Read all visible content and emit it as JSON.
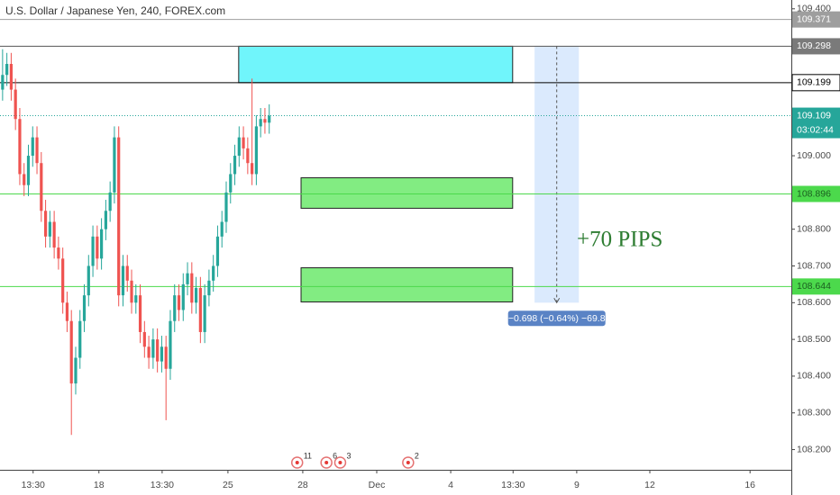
{
  "chart_data": {
    "type": "candlestick",
    "title": "U.S. Dollar / Japanese Yen, 240, FOREX.com",
    "up_color": "#26a69a",
    "down_color": "#ef5350",
    "open": [
      109.18,
      109.22,
      109.25,
      109.18,
      109.1,
      108.95,
      108.92,
      109.0,
      109.05,
      108.98,
      108.85,
      108.78,
      108.82,
      108.75,
      108.72,
      108.6,
      108.55,
      108.38,
      108.45,
      108.55,
      108.62,
      108.7,
      108.78,
      108.72,
      108.8,
      108.85,
      108.9,
      109.05,
      108.62,
      108.7,
      108.66,
      108.6,
      108.62,
      108.52,
      108.48,
      108.45,
      108.5,
      108.44,
      108.48,
      108.42,
      108.55,
      108.62,
      108.58,
      108.65,
      108.68,
      108.6,
      108.64,
      108.52,
      108.62,
      108.66,
      108.7,
      108.78,
      108.82,
      108.9,
      108.95,
      109.0,
      109.05,
      109.02,
      108.98,
      108.95,
      109.08,
      109.1,
      109.09
    ],
    "high": [
      109.29,
      109.28,
      109.28,
      109.21,
      109.13,
      108.98,
      109.03,
      109.08,
      109.08,
      109.01,
      108.88,
      108.85,
      108.85,
      108.78,
      108.75,
      108.63,
      108.58,
      108.48,
      108.58,
      108.65,
      108.73,
      108.81,
      108.81,
      108.83,
      108.88,
      108.93,
      109.08,
      109.08,
      108.73,
      108.73,
      108.69,
      108.65,
      108.65,
      108.55,
      108.51,
      108.53,
      108.53,
      108.51,
      108.51,
      108.58,
      108.65,
      108.65,
      108.68,
      108.71,
      108.71,
      108.67,
      108.67,
      108.65,
      108.69,
      108.73,
      108.81,
      108.85,
      108.93,
      108.98,
      109.03,
      109.08,
      109.08,
      109.05,
      109.21,
      109.11,
      109.13,
      109.13,
      109.14
    ],
    "low": [
      109.15,
      109.19,
      109.15,
      109.07,
      108.92,
      108.89,
      108.89,
      108.97,
      108.95,
      108.82,
      108.75,
      108.75,
      108.72,
      108.69,
      108.57,
      108.52,
      108.24,
      108.35,
      108.42,
      108.52,
      108.59,
      108.67,
      108.69,
      108.69,
      108.77,
      108.82,
      108.87,
      108.59,
      108.59,
      108.63,
      108.57,
      108.57,
      108.49,
      108.45,
      108.42,
      108.42,
      108.41,
      108.41,
      108.28,
      108.39,
      108.52,
      108.55,
      108.55,
      108.62,
      108.57,
      108.57,
      108.49,
      108.49,
      108.59,
      108.63,
      108.67,
      108.75,
      108.79,
      108.87,
      108.92,
      108.97,
      108.99,
      108.95,
      108.92,
      108.92,
      109.05,
      109.06,
      109.06
    ],
    "close": [
      109.22,
      109.25,
      109.18,
      109.1,
      108.95,
      108.92,
      109.0,
      109.05,
      108.98,
      108.85,
      108.78,
      108.82,
      108.75,
      108.72,
      108.6,
      108.55,
      108.38,
      108.45,
      108.55,
      108.62,
      108.7,
      108.78,
      108.72,
      108.8,
      108.85,
      108.9,
      109.05,
      108.62,
      108.7,
      108.66,
      108.6,
      108.62,
      108.52,
      108.48,
      108.45,
      108.5,
      108.44,
      108.48,
      108.42,
      108.55,
      108.62,
      108.58,
      108.65,
      108.68,
      108.6,
      108.64,
      108.52,
      108.62,
      108.66,
      108.7,
      108.78,
      108.82,
      108.9,
      108.95,
      109.0,
      109.05,
      109.02,
      108.98,
      108.95,
      109.08,
      109.1,
      109.09,
      109.109
    ],
    "ylim": [
      108.145,
      109.424
    ],
    "yticks": [
      {
        "value": 109.4,
        "label": "109.400"
      },
      {
        "value": 109.0,
        "label": "109.000"
      },
      {
        "value": 108.8,
        "label": "108.800"
      },
      {
        "value": 108.7,
        "label": "108.700"
      },
      {
        "value": 108.6,
        "label": "108.600"
      },
      {
        "value": 108.5,
        "label": "108.500"
      },
      {
        "value": 108.4,
        "label": "108.400"
      },
      {
        "value": 108.3,
        "label": "108.300"
      },
      {
        "value": 108.2,
        "label": "108.200"
      }
    ],
    "xlim": [
      -0.6,
      183.4
    ],
    "xticks": [
      {
        "value": 7.1,
        "label": "13:30"
      },
      {
        "value": 22.4,
        "label": "18"
      },
      {
        "value": 37.1,
        "label": "13:30"
      },
      {
        "value": 52.4,
        "label": "25"
      },
      {
        "value": 69.8,
        "label": "28"
      },
      {
        "value": 87,
        "label": "Dec"
      },
      {
        "value": 104.2,
        "label": "4"
      },
      {
        "value": 118.7,
        "label": "13:30"
      },
      {
        "value": 133.5,
        "label": "9"
      },
      {
        "value": 150.5,
        "label": "12"
      },
      {
        "value": 173.8,
        "label": "16"
      }
    ],
    "price_lines": [
      {
        "value": 109.371,
        "color": "#9e9e9e",
        "label_bg": "#9e9e9e",
        "label_fg": "#ffffff"
      },
      {
        "value": 109.298,
        "color": "#555555",
        "label_bg": "#7a7a7a",
        "label_fg": "#ffffff"
      },
      {
        "value": 109.199,
        "color": "#000000",
        "label_bg": "#ffffff",
        "label_fg": "#000000"
      },
      {
        "value": 108.896,
        "color": "#4cd94c",
        "label_bg": "#4cd94c",
        "label_fg": "#1b5e20"
      },
      {
        "value": 108.644,
        "color": "#4cd94c",
        "label_bg": "#4cd94c",
        "label_fg": "#1b5e20"
      }
    ],
    "last_price": 109.109,
    "last_color": "#26a69a",
    "countdown": "03:02:44",
    "zones": [
      {
        "x": [
          54.9,
          118.6
        ],
        "y": [
          109.298,
          109.199
        ],
        "color": "#70f5fb"
      },
      {
        "x": [
          69.4,
          118.6
        ],
        "y": [
          108.94,
          108.857
        ],
        "color": "#82ec82"
      },
      {
        "x": [
          69.4,
          118.6
        ],
        "y": [
          108.695,
          108.602
        ],
        "color": "#82ec82"
      }
    ],
    "measure": {
      "x": [
        123.7,
        134
      ],
      "y": [
        109.298,
        108.6
      ],
      "label": "−0.698 (−0.64%) −69.8",
      "color": "#dbeafd"
    },
    "annotation": "+70 PIPS",
    "events": [
      {
        "x": 68.5,
        "label": "11"
      },
      {
        "x": 75.3,
        "label": "6"
      },
      {
        "x": 78.5,
        "label": "3"
      },
      {
        "x": 94.3,
        "label": "2"
      }
    ]
  }
}
